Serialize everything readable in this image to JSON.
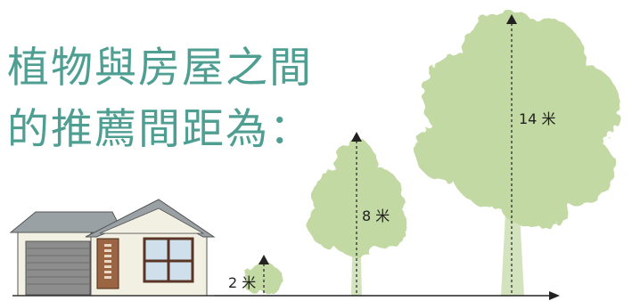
{
  "heading": {
    "line1": "植物與房屋之間",
    "line2": "的推薦間距為："
  },
  "plants": [
    {
      "name": "shrub",
      "height_label": "2 米",
      "height_m": 2
    },
    {
      "name": "medium-tree",
      "height_label": "8 米",
      "height_m": 8
    },
    {
      "name": "large-tree",
      "height_label": "14 米",
      "height_m": 14
    }
  ],
  "colors": {
    "title": "#4e9e92",
    "foliage": "#c3d9a3",
    "trunk": "#d3e3bd",
    "house_wall": "#f1f0e3",
    "roof": "#9aa1a5",
    "door": "#9b6544",
    "window_frame": "#5a3424",
    "glass": "#cfe0ec",
    "garage": "#8d8d8d"
  }
}
